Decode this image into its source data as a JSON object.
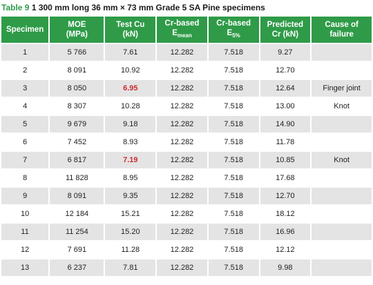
{
  "caption": {
    "label": "Table 9",
    "text": "1 300 mm long 36 mm × 73 mm Grade 5 SA Pine specimens"
  },
  "headers": {
    "specimen": "Specimen",
    "moe_line1": "MOE",
    "moe_line2": "(MPa)",
    "test_cu_line1": "Test Cu",
    "test_cu_line2": "(kN)",
    "cr_emean_line1": "Cr-based",
    "cr_emean_base": "E",
    "cr_emean_sub": "mean",
    "cr_e5_line1": "Cr-based",
    "cr_e5_base": "E",
    "cr_e5_sub": "5%",
    "predicted_line1": "Predicted",
    "predicted_line2": "Cr (kN)",
    "cause_line1": "Cause of",
    "cause_line2": "failure"
  },
  "highlight_color": "#cc2a2a",
  "header_color": "#2f9b48",
  "rows": [
    {
      "specimen": "1",
      "moe": "5 766",
      "test_cu": "7.61",
      "cr_emean": "12.282",
      "cr_e5": "7.518",
      "predicted": "9.27",
      "cause": "",
      "highlight": false
    },
    {
      "specimen": "2",
      "moe": "8 091",
      "test_cu": "10.92",
      "cr_emean": "12.282",
      "cr_e5": "7.518",
      "predicted": "12.70",
      "cause": "",
      "highlight": false
    },
    {
      "specimen": "3",
      "moe": "8 050",
      "test_cu": "6.95",
      "cr_emean": "12.282",
      "cr_e5": "7.518",
      "predicted": "12.64",
      "cause": "Finger joint",
      "highlight": true
    },
    {
      "specimen": "4",
      "moe": "8 307",
      "test_cu": "10.28",
      "cr_emean": "12.282",
      "cr_e5": "7.518",
      "predicted": "13.00",
      "cause": "Knot",
      "highlight": false
    },
    {
      "specimen": "5",
      "moe": "9 679",
      "test_cu": "9.18",
      "cr_emean": "12.282",
      "cr_e5": "7.518",
      "predicted": "14.90",
      "cause": "",
      "highlight": false
    },
    {
      "specimen": "6",
      "moe": "7 452",
      "test_cu": "8.93",
      "cr_emean": "12.282",
      "cr_e5": "7.518",
      "predicted": "11.78",
      "cause": "",
      "highlight": false
    },
    {
      "specimen": "7",
      "moe": "6 817",
      "test_cu": "7.19",
      "cr_emean": "12.282",
      "cr_e5": "7.518",
      "predicted": "10.85",
      "cause": "Knot",
      "highlight": true
    },
    {
      "specimen": "8",
      "moe": "11 828",
      "test_cu": "8.95",
      "cr_emean": "12.282",
      "cr_e5": "7.518",
      "predicted": "17.68",
      "cause": "",
      "highlight": false
    },
    {
      "specimen": "9",
      "moe": "8 091",
      "test_cu": "9.35",
      "cr_emean": "12.282",
      "cr_e5": "7.518",
      "predicted": "12.70",
      "cause": "",
      "highlight": false
    },
    {
      "specimen": "10",
      "moe": "12 184",
      "test_cu": "15.21",
      "cr_emean": "12.282",
      "cr_e5": "7.518",
      "predicted": "18.12",
      "cause": "",
      "highlight": false
    },
    {
      "specimen": "11",
      "moe": "11 254",
      "test_cu": "15.20",
      "cr_emean": "12.282",
      "cr_e5": "7.518",
      "predicted": "16.96",
      "cause": "",
      "highlight": false
    },
    {
      "specimen": "12",
      "moe": "7 691",
      "test_cu": "11.28",
      "cr_emean": "12.282",
      "cr_e5": "7.518",
      "predicted": "12.12",
      "cause": "",
      "highlight": false
    },
    {
      "specimen": "13",
      "moe": "6 237",
      "test_cu": "7.81",
      "cr_emean": "12.282",
      "cr_e5": "7.518",
      "predicted": "9.98",
      "cause": "",
      "highlight": false
    }
  ]
}
